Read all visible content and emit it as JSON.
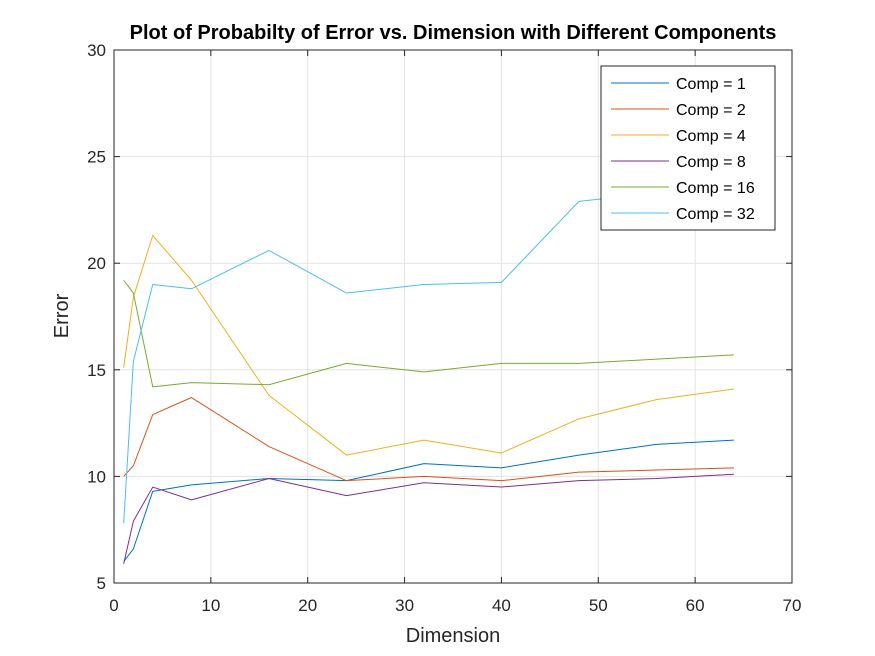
{
  "chart_data": {
    "type": "line",
    "title": "Plot of Probabilty of Error vs. Dimension with Different Components",
    "xlabel": "Dimension",
    "ylabel": "Error",
    "xlim": [
      0,
      70
    ],
    "ylim": [
      5,
      30
    ],
    "xticks": [
      "0",
      "10",
      "20",
      "30",
      "40",
      "50",
      "60",
      "70"
    ],
    "yticks": [
      "5",
      "10",
      "15",
      "20",
      "25",
      "30"
    ],
    "grid": true,
    "legend_position": "top-right",
    "series": [
      {
        "name": "Comp = 1",
        "color": "#0072BD",
        "x": [
          1,
          2,
          4,
          8,
          16,
          24,
          32,
          40,
          48,
          56,
          64
        ],
        "y": [
          6.0,
          6.6,
          9.3,
          9.6,
          9.9,
          9.8,
          10.6,
          10.4,
          11.0,
          11.5,
          11.7
        ]
      },
      {
        "name": "Comp = 2",
        "color": "#D95319",
        "x": [
          1,
          2,
          4,
          8,
          16,
          24,
          32,
          40,
          48,
          56,
          64
        ],
        "y": [
          10.0,
          10.5,
          12.9,
          13.7,
          11.4,
          9.8,
          10.0,
          9.8,
          10.2,
          10.3,
          10.4
        ]
      },
      {
        "name": "Comp = 4",
        "color": "#EDB120",
        "x": [
          1,
          2,
          4,
          8,
          16,
          24,
          32,
          40,
          48,
          56,
          64
        ],
        "y": [
          15.1,
          18.4,
          21.3,
          19.2,
          13.8,
          11.0,
          11.7,
          11.1,
          12.7,
          13.6,
          14.1
        ]
      },
      {
        "name": "Comp = 8",
        "color": "#7E2F8E",
        "x": [
          1,
          2,
          4,
          8,
          16,
          24,
          32,
          40,
          48,
          56,
          64
        ],
        "y": [
          5.9,
          7.9,
          9.5,
          8.9,
          9.9,
          9.1,
          9.7,
          9.5,
          9.8,
          9.9,
          10.1
        ]
      },
      {
        "name": "Comp = 16",
        "color": "#77AC30",
        "x": [
          1,
          2,
          4,
          8,
          16,
          24,
          32,
          40,
          48,
          56,
          64
        ],
        "y": [
          19.2,
          18.6,
          14.2,
          14.4,
          14.3,
          15.3,
          14.9,
          15.3,
          15.3,
          15.5,
          15.7
        ]
      },
      {
        "name": "Comp = 32",
        "color": "#4DBEEE",
        "x": [
          1,
          2,
          4,
          8,
          16,
          24,
          32,
          40,
          48,
          56,
          64
        ],
        "y": [
          7.8,
          15.4,
          19.0,
          18.8,
          20.6,
          18.6,
          19.0,
          19.1,
          22.9,
          23.3,
          23.6
        ]
      }
    ]
  }
}
